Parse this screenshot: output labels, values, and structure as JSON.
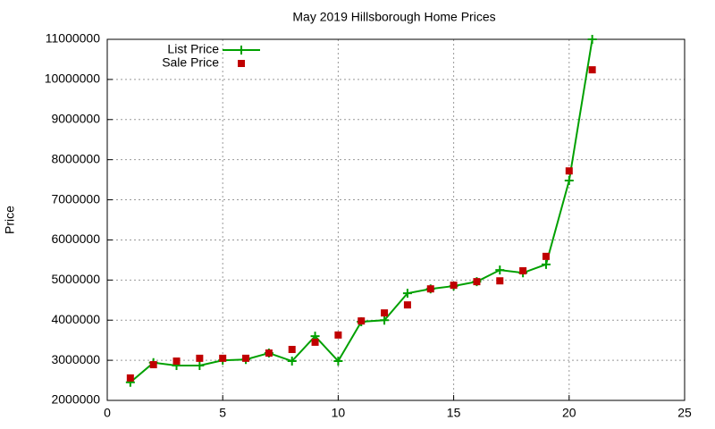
{
  "chart_data": {
    "type": "line",
    "title": "May 2019 Hillsborough Home Prices",
    "y_label": "Price",
    "x": [
      1,
      2,
      3,
      4,
      5,
      6,
      7,
      8,
      9,
      10,
      11,
      12,
      13,
      14,
      15,
      16,
      17,
      18,
      19,
      20,
      21
    ],
    "series": [
      {
        "name": "List Price",
        "color": "#00a000",
        "line": true,
        "marker": "plus",
        "values": [
          2450000,
          2940000,
          2870000,
          2870000,
          3000000,
          3020000,
          3180000,
          2980000,
          3600000,
          2980000,
          3960000,
          4000000,
          4670000,
          4780000,
          4850000,
          4960000,
          5250000,
          5180000,
          5390000,
          7480000,
          11000000
        ]
      },
      {
        "name": "Sale Price",
        "color": "#c00000",
        "line": false,
        "marker": "square",
        "values": [
          2560000,
          2890000,
          2980000,
          3050000,
          3050000,
          3050000,
          3180000,
          3270000,
          3450000,
          3630000,
          3980000,
          4180000,
          4380000,
          4780000,
          4870000,
          4960000,
          4980000,
          5230000,
          5590000,
          7720000,
          10240000
        ]
      }
    ],
    "xlim": [
      0,
      25
    ],
    "xticks": [
      0,
      5,
      10,
      15,
      20,
      25
    ],
    "ylim": [
      2000000,
      11000000
    ],
    "yticks": [
      2000000,
      3000000,
      4000000,
      5000000,
      6000000,
      7000000,
      8000000,
      9000000,
      10000000,
      11000000
    ],
    "grid": true,
    "legend": "top-left"
  }
}
